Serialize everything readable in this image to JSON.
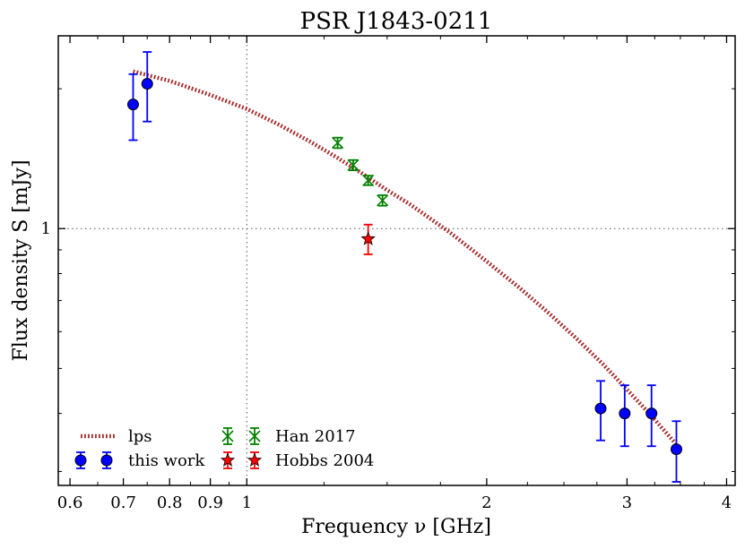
{
  "chart_data": {
    "type": "scatter",
    "title": "PSR J1843-0211",
    "xlabel": "Frequency ν [GHz]",
    "ylabel": "Flux density S [mJy]",
    "x_scale": "log",
    "y_scale": "log",
    "xlim": [
      0.58,
      4.1
    ],
    "ylim": [
      0.28,
      2.6
    ],
    "x_ticks": [
      0.6,
      0.7,
      0.8,
      0.9,
      1,
      2,
      3,
      4
    ],
    "x_tick_labels": [
      "0.6",
      "0.7",
      "0.8",
      "0.9",
      "1",
      "2",
      "3",
      "4"
    ],
    "y_ticks": [
      1
    ],
    "y_tick_labels": [
      "1"
    ],
    "reference_lines": {
      "x": 1,
      "y": 1,
      "style": "dotted"
    },
    "grid": false,
    "legend_position": "lower-left",
    "series": [
      {
        "name": "this work",
        "marker": "circle",
        "color": "#0000ff",
        "points": [
          {
            "x": 0.72,
            "y": 1.85,
            "yerr_low": 0.3,
            "yerr_high": 0.3
          },
          {
            "x": 0.75,
            "y": 2.05,
            "yerr_low": 0.35,
            "yerr_high": 0.35
          },
          {
            "x": 2.78,
            "y": 0.41,
            "yerr_low": 0.06,
            "yerr_high": 0.06
          },
          {
            "x": 2.98,
            "y": 0.4,
            "yerr_low": 0.06,
            "yerr_high": 0.06
          },
          {
            "x": 3.22,
            "y": 0.4,
            "yerr_low": 0.06,
            "yerr_high": 0.06
          },
          {
            "x": 3.46,
            "y": 0.335,
            "yerr_low": 0.05,
            "yerr_high": 0.05
          }
        ]
      },
      {
        "name": "Han 2017",
        "marker": "x",
        "color": "#008000",
        "points": [
          {
            "x": 1.3,
            "y": 1.53,
            "yerr_low": 0.04,
            "yerr_high": 0.04
          },
          {
            "x": 1.36,
            "y": 1.37,
            "yerr_low": 0.035,
            "yerr_high": 0.035
          },
          {
            "x": 1.42,
            "y": 1.27,
            "yerr_low": 0.03,
            "yerr_high": 0.03
          },
          {
            "x": 1.48,
            "y": 1.15,
            "yerr_low": 0.03,
            "yerr_high": 0.03
          }
        ]
      },
      {
        "name": "Hobbs 2004",
        "marker": "star",
        "color": "#ff0000",
        "points": [
          {
            "x": 1.42,
            "y": 0.95,
            "yerr_low": 0.07,
            "yerr_high": 0.07
          }
        ]
      }
    ],
    "model": {
      "name": "lps",
      "style": "dotted",
      "color": "#a52a2a",
      "x": [
        0.72,
        0.8,
        0.9,
        1.0,
        1.1,
        1.2,
        1.3,
        1.4,
        1.5,
        1.6,
        1.8,
        2.0,
        2.2,
        2.4,
        2.6,
        2.8,
        3.0,
        3.2,
        3.45
      ],
      "y": [
        2.18,
        2.08,
        1.94,
        1.81,
        1.67,
        1.54,
        1.42,
        1.31,
        1.21,
        1.13,
        0.98,
        0.85,
        0.745,
        0.655,
        0.577,
        0.51,
        0.45,
        0.4,
        0.345
      ]
    }
  }
}
